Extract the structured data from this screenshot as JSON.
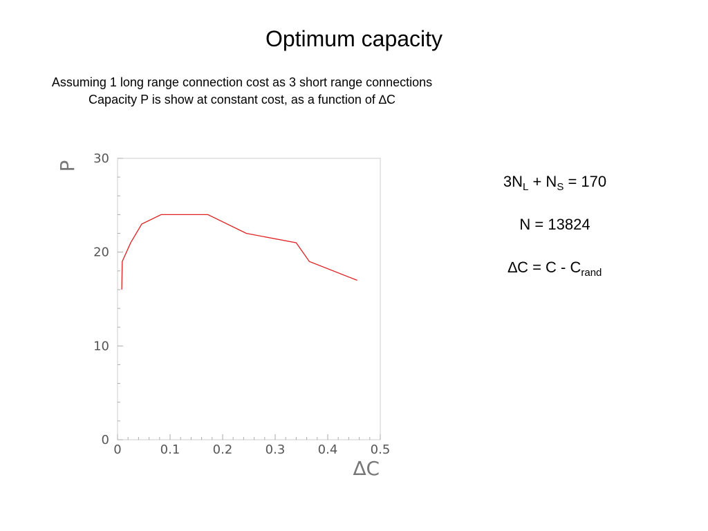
{
  "title": "Optimum capacity",
  "subtitle_line1": "Assuming 1 long range connection cost as 3 short range connections",
  "subtitle_line2": "Capacity P is show at constant cost, as a function of ∆C",
  "equations": {
    "eq1_a": "3N",
    "eq1_sub_a": "L",
    "eq1_b": " + N",
    "eq1_sub_b": "S",
    "eq1_c": " = 170",
    "eq2": "N = 13824",
    "eq3_a": "∆C = C - C",
    "eq3_sub": "rand"
  },
  "chart_data": {
    "type": "line",
    "title": "",
    "xlabel": "∆C",
    "ylabel": "P",
    "xlim": [
      0,
      0.5
    ],
    "ylim": [
      0,
      30
    ],
    "xticks": [
      0,
      0.1,
      0.2,
      0.3,
      0.4,
      0.5
    ],
    "xtick_labels": [
      "0",
      "0.1",
      "0.2",
      "0.3",
      "0.4",
      "0.5"
    ],
    "yticks": [
      0,
      10,
      20,
      30
    ],
    "ytick_labels": [
      "0",
      "10",
      "20",
      "30"
    ],
    "grid": false,
    "series": [
      {
        "color": "#e02020",
        "x": [
          0.008,
          0.009,
          0.025,
          0.046,
          0.083,
          0.172,
          0.245,
          0.34,
          0.365,
          0.456
        ],
        "y": [
          16,
          19,
          21,
          23,
          24,
          24,
          22,
          21,
          19,
          17
        ]
      }
    ]
  }
}
